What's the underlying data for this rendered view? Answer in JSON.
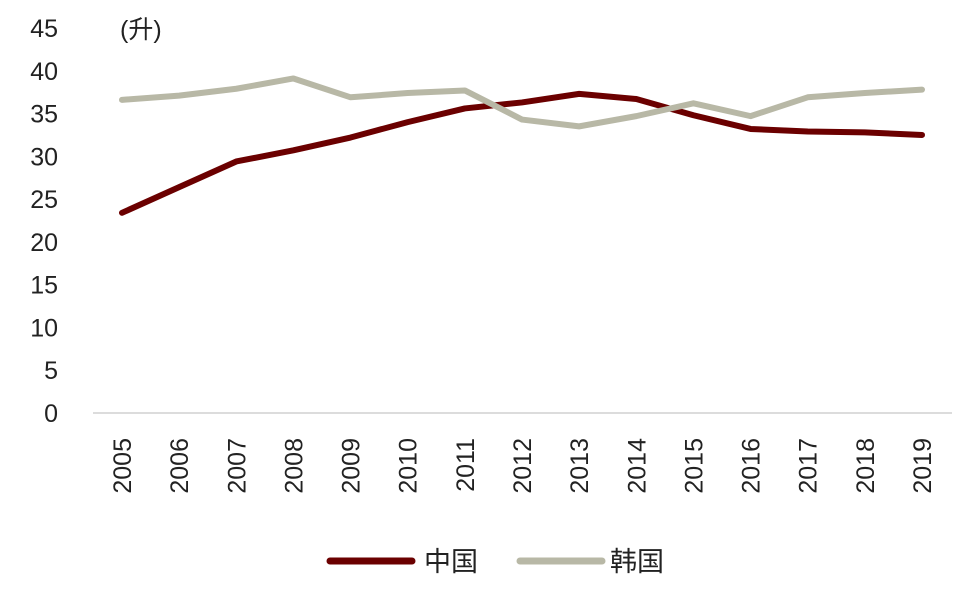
{
  "chart_data": {
    "type": "line",
    "title": "",
    "unit_label": "(升)",
    "xlabel": "",
    "ylabel": "",
    "ylim": [
      0,
      45
    ],
    "yticks": [
      0,
      5,
      10,
      15,
      20,
      25,
      30,
      35,
      40,
      45
    ],
    "categories": [
      "2005",
      "2006",
      "2007",
      "2008",
      "2009",
      "2010",
      "2011",
      "2012",
      "2013",
      "2014",
      "2015",
      "2016",
      "2017",
      "2018",
      "2019"
    ],
    "grid": false,
    "legend_position": "bottom",
    "series": [
      {
        "name": "中国",
        "color": "#6b0000",
        "values": [
          23.4,
          26.4,
          29.4,
          30.7,
          32.2,
          34.0,
          35.6,
          36.3,
          37.3,
          36.7,
          34.8,
          33.2,
          32.9,
          32.8,
          32.5
        ]
      },
      {
        "name": "韩国",
        "color": "#b8b8a6",
        "values": [
          36.6,
          37.1,
          37.9,
          39.1,
          36.9,
          37.4,
          37.7,
          34.3,
          33.5,
          34.7,
          36.2,
          34.7,
          36.9,
          37.4,
          37.8
        ]
      }
    ]
  }
}
